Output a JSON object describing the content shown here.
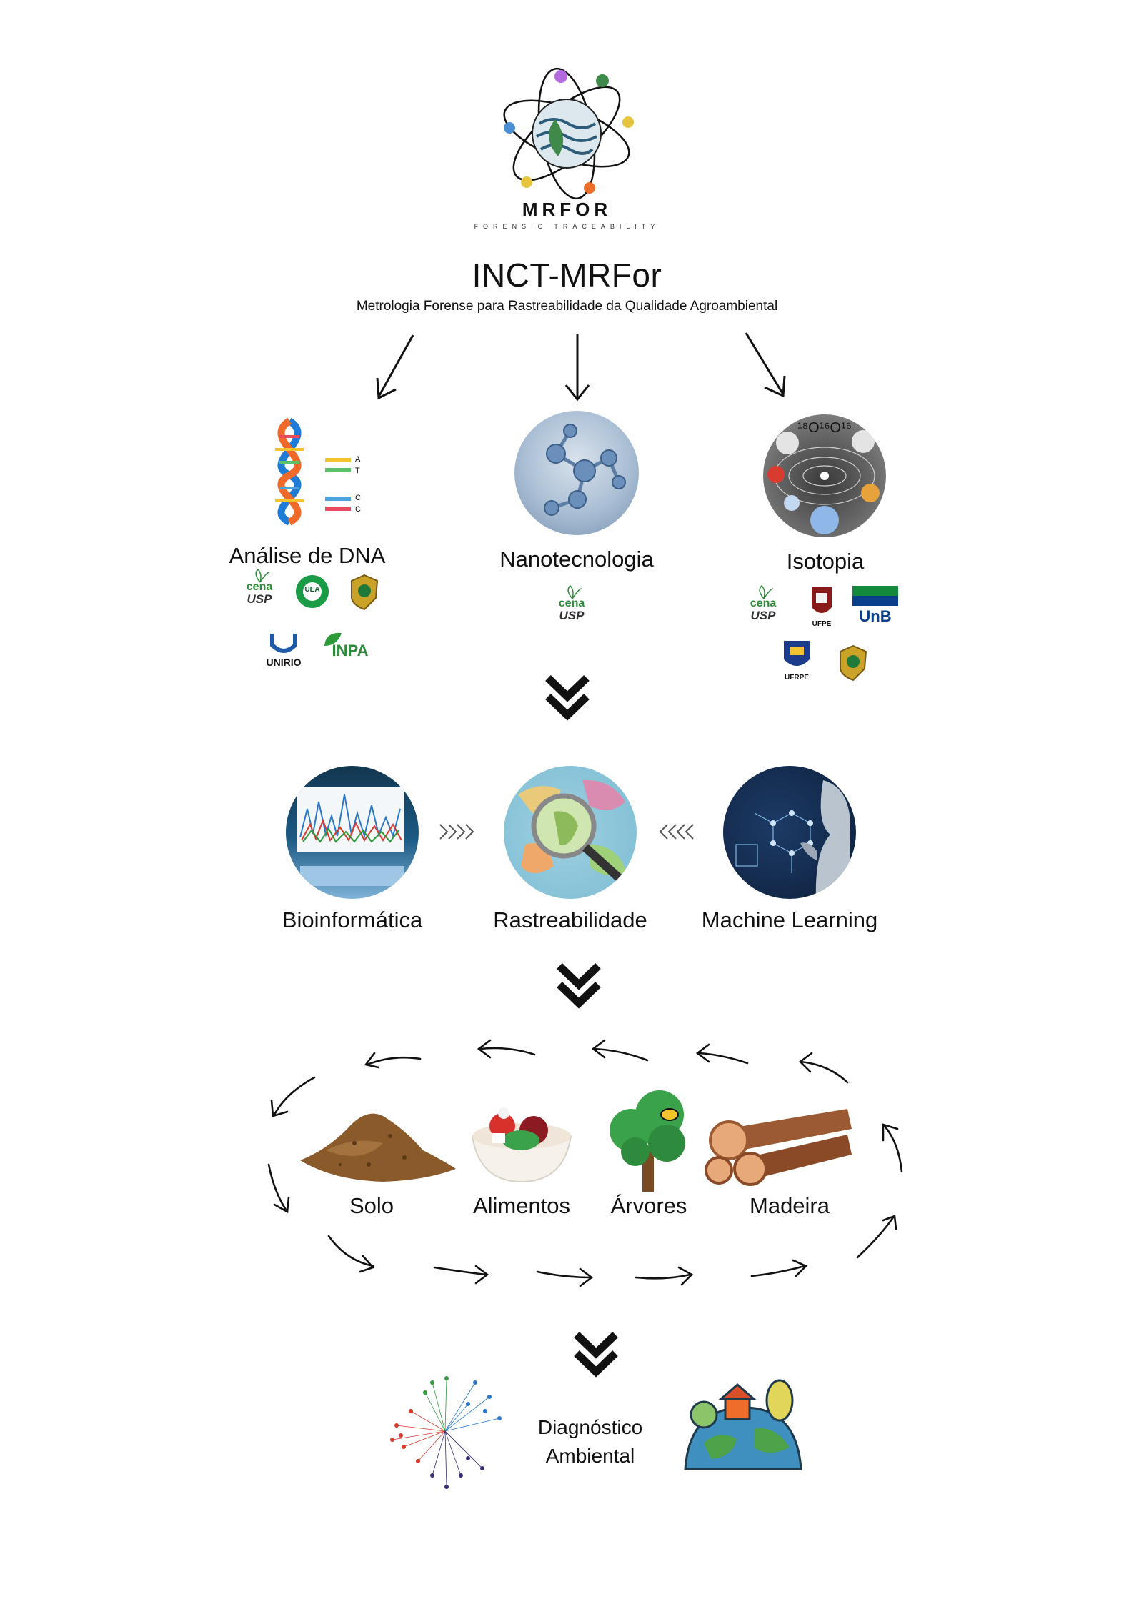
{
  "logo": {
    "name": "MRFOR",
    "tagline": "FORENSIC TRACEABILITY"
  },
  "header": {
    "title": "INCT-MRFor",
    "subtitle": "Metrologia Forense para Rastreabilidade da Qualidade Agroambiental"
  },
  "branches": [
    {
      "label": "Análise de DNA",
      "icon": "dna-icon",
      "dna_letters": [
        "A",
        "T",
        "C",
        "C"
      ]
    },
    {
      "label": "Nanotecnologia",
      "icon": "molecule-icon"
    },
    {
      "label": "Isotopia",
      "icon": "isotope-icon",
      "isotope_text": "¹⁸O¹⁶O¹⁶"
    }
  ],
  "institutions": {
    "dna": [
      "cena USP",
      "UEA",
      "Polícia Federal",
      "UNIRIO",
      "INPA"
    ],
    "nano": [
      "cena USP"
    ],
    "isotopia": [
      "cena USP",
      "UFPE",
      "UnB",
      "UFRPE",
      "Polícia Federal"
    ]
  },
  "institution_text": {
    "cena": "cena",
    "usp": "USP",
    "uea": "UEA",
    "unirio": "UNIRIO",
    "inpa": "INPA",
    "ufpe": "UFPE",
    "unb": "UnB",
    "ufrpe": "UFRPE"
  },
  "analysis": {
    "left": "Bioinformática",
    "center": "Rastreabilidade",
    "right": "Machine Learning"
  },
  "samples": [
    "Solo",
    "Alimentos",
    "Árvores",
    "Madeira"
  ],
  "result": {
    "line1": "Diagnóstico",
    "line2": "Ambiental"
  },
  "colors": {
    "cena_green": "#2e8b3a",
    "unb_blue": "#0a3f8c",
    "unb_green": "#138a3b",
    "pf_gold": "#c9a227",
    "soil": "#8a5a2b",
    "wood": "#9b5a33"
  }
}
